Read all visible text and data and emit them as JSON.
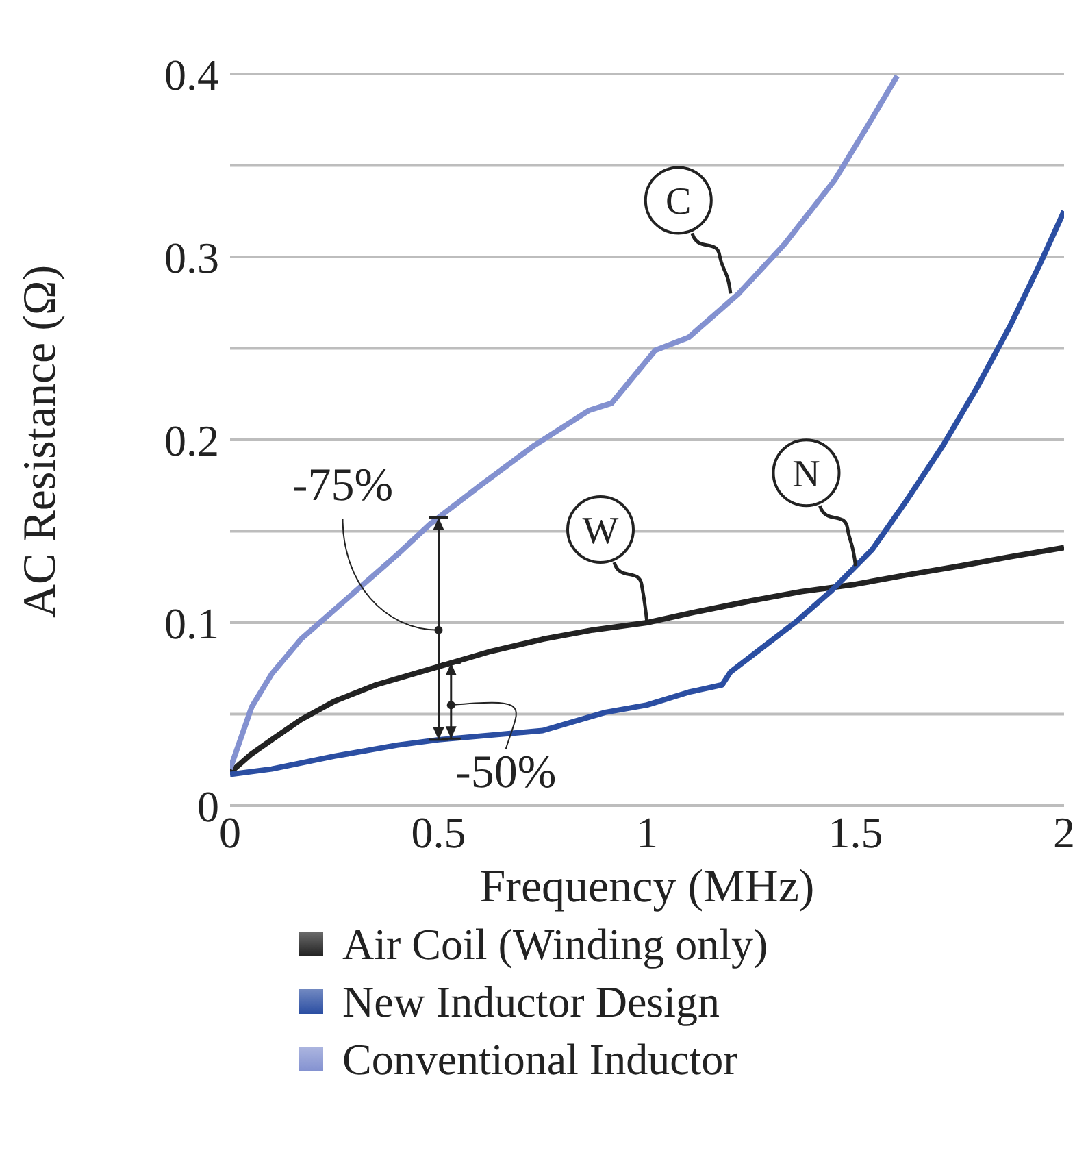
{
  "chart_data": {
    "type": "line",
    "xlabel": "Frequency (MHz)",
    "ylabel": "AC Resistance (Ω)",
    "xlim": [
      0,
      2
    ],
    "xticks": [
      0,
      0.5,
      1,
      1.5,
      2
    ],
    "ylim": [
      0,
      0.4
    ],
    "yticks": [
      0,
      {
        "value": 0.05,
        "label": null
      },
      0.1,
      {
        "value": 0.15,
        "label": null
      },
      0.2,
      {
        "value": 0.25,
        "label": null
      },
      0.3,
      {
        "value": 0.35,
        "label": null
      },
      0.4
    ],
    "grid": "y",
    "legend": "bottom",
    "marker": "none",
    "line_style": "solid",
    "series": [
      {
        "name": "Air Coil (Winding only)",
        "color": "#222222",
        "x": [
          0,
          0.05,
          0.1,
          0.17,
          0.25,
          0.35,
          0.5,
          0.62,
          0.75,
          0.87,
          1.0,
          1.12,
          1.25,
          1.37,
          1.5,
          1.62,
          1.75,
          1.87,
          2.0
        ],
        "values": [
          0.018,
          0.028,
          0.036,
          0.047,
          0.057,
          0.066,
          0.076,
          0.084,
          0.091,
          0.096,
          0.1,
          0.106,
          0.112,
          0.117,
          0.121,
          0.126,
          0.131,
          0.136,
          0.141
        ]
      },
      {
        "name": "New Inductor Design",
        "color": "#2b4ea2",
        "x": [
          0,
          0.1,
          0.25,
          0.4,
          0.5,
          0.65,
          0.75,
          0.81,
          0.9,
          1.0,
          1.1,
          1.18,
          1.2,
          1.28,
          1.36,
          1.44,
          1.54,
          1.62,
          1.71,
          1.79,
          1.87,
          1.94,
          2.0
        ],
        "values": [
          0.017,
          0.02,
          0.027,
          0.033,
          0.036,
          0.039,
          0.041,
          0.045,
          0.051,
          0.055,
          0.062,
          0.066,
          0.073,
          0.087,
          0.101,
          0.117,
          0.14,
          0.166,
          0.197,
          0.228,
          0.262,
          0.295,
          0.325
        ]
      },
      {
        "name": "Conventional Inductor",
        "color": "#8391d0",
        "x": [
          0,
          0.02,
          0.052,
          0.1,
          0.17,
          0.3,
          0.4,
          0.48,
          0.6,
          0.73,
          0.86,
          0.915,
          1.02,
          1.1,
          1.22,
          1.33,
          1.45,
          1.53,
          1.6
        ],
        "values": [
          0.02,
          0.033,
          0.054,
          0.072,
          0.091,
          0.117,
          0.137,
          0.154,
          0.175,
          0.197,
          0.216,
          0.22,
          0.249,
          0.256,
          0.28,
          0.307,
          0.342,
          0.372,
          0.399
        ]
      }
    ],
    "annotations": [
      {
        "text": "-75%",
        "x": 0.5,
        "y": 0.096
      },
      {
        "text": "-50%",
        "x": 0.53,
        "y": 0.055
      },
      {
        "text": "C",
        "x": 1.2,
        "y": 0.28
      },
      {
        "text": "W",
        "x": 1.0,
        "y": 0.1
      },
      {
        "text": "N",
        "x": 1.5,
        "y": 0.131
      }
    ]
  }
}
